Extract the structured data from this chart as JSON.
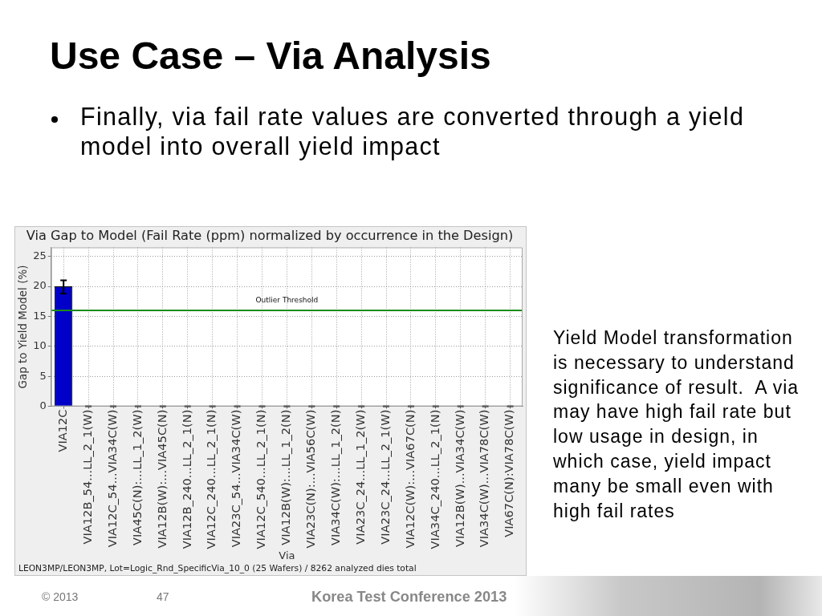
{
  "chart_data": {
    "type": "bar",
    "title": "Use Case – Via Analysis",
    "subtitle": "Via Gap to Model (Fail Rate (ppm) normalized by occurrence in the Design)",
    "xlabel": "Via",
    "ylabel": "Gap to Yield Model (%)",
    "categories": [
      "VIA12C",
      "VIA12B_54...LL_2_1(W)",
      "VIA12C_54...VIA34C(W)",
      "VIA45C(N):...LL_1_2(W)",
      "VIA12B(W):...VIA45C(N)",
      "VIA12B_240...LL_2_1(N)",
      "VIA12C_240...LL_2_1(N)",
      "VIA23C_54...VIA34C(W)",
      "VIA12C_540...LL_2_1(N)",
      "VIA12B(W):...LL_1_2(N)",
      "VIA23C(N):...VIA56C(W)",
      "VIA34C(W):...LL_1_2(N)",
      "VIA23C_24...LL_1_2(W)",
      "VIA23C_24...LL_2_1(W)",
      "VIA12C(W):...VIA67C(N)",
      "VIA34C_240...LL_2_1(N)",
      "VIA12B(W)...VIA34C(W)",
      "VIA34C(W)...VIA78C(W)",
      "VIA67C(N):VIA78C(W)"
    ],
    "values": [
      20,
      0,
      0,
      0,
      0,
      0,
      0,
      0,
      0,
      0,
      0,
      0,
      0,
      0,
      0,
      0,
      0,
      0,
      0
    ],
    "errors": [
      [
        18.8,
        21
      ],
      0,
      0,
      0,
      0,
      0,
      0,
      0,
      0,
      0,
      0,
      0,
      0,
      0,
      0,
      0,
      0,
      0,
      0
    ],
    "color": "#0000c8",
    "ylim": [
      0,
      26.5
    ],
    "yticks": [
      0,
      5,
      10,
      15,
      20,
      25
    ],
    "grid": true,
    "ref_lines": [
      {
        "axis": "y",
        "value": 16,
        "label": "Outlier Threshold",
        "color": "#1a8c1a"
      }
    ],
    "annotations": [
      "Finally, via fail rate values are converted through a yield model into overall yield impact",
      "Yield Model transformation is necessary to understand significance of result.  A via may have high fail rate but low usage in design, in which case, yield impact many be small even with high fail rates",
      "LEON3MP/LEON3MP, Lot=Logic_Rnd_SpecificVia_10_0 (25 Wafers) / 8262 analyzed dies total",
      "© 2013",
      "47",
      "Korea Test Conference 2013"
    ]
  }
}
